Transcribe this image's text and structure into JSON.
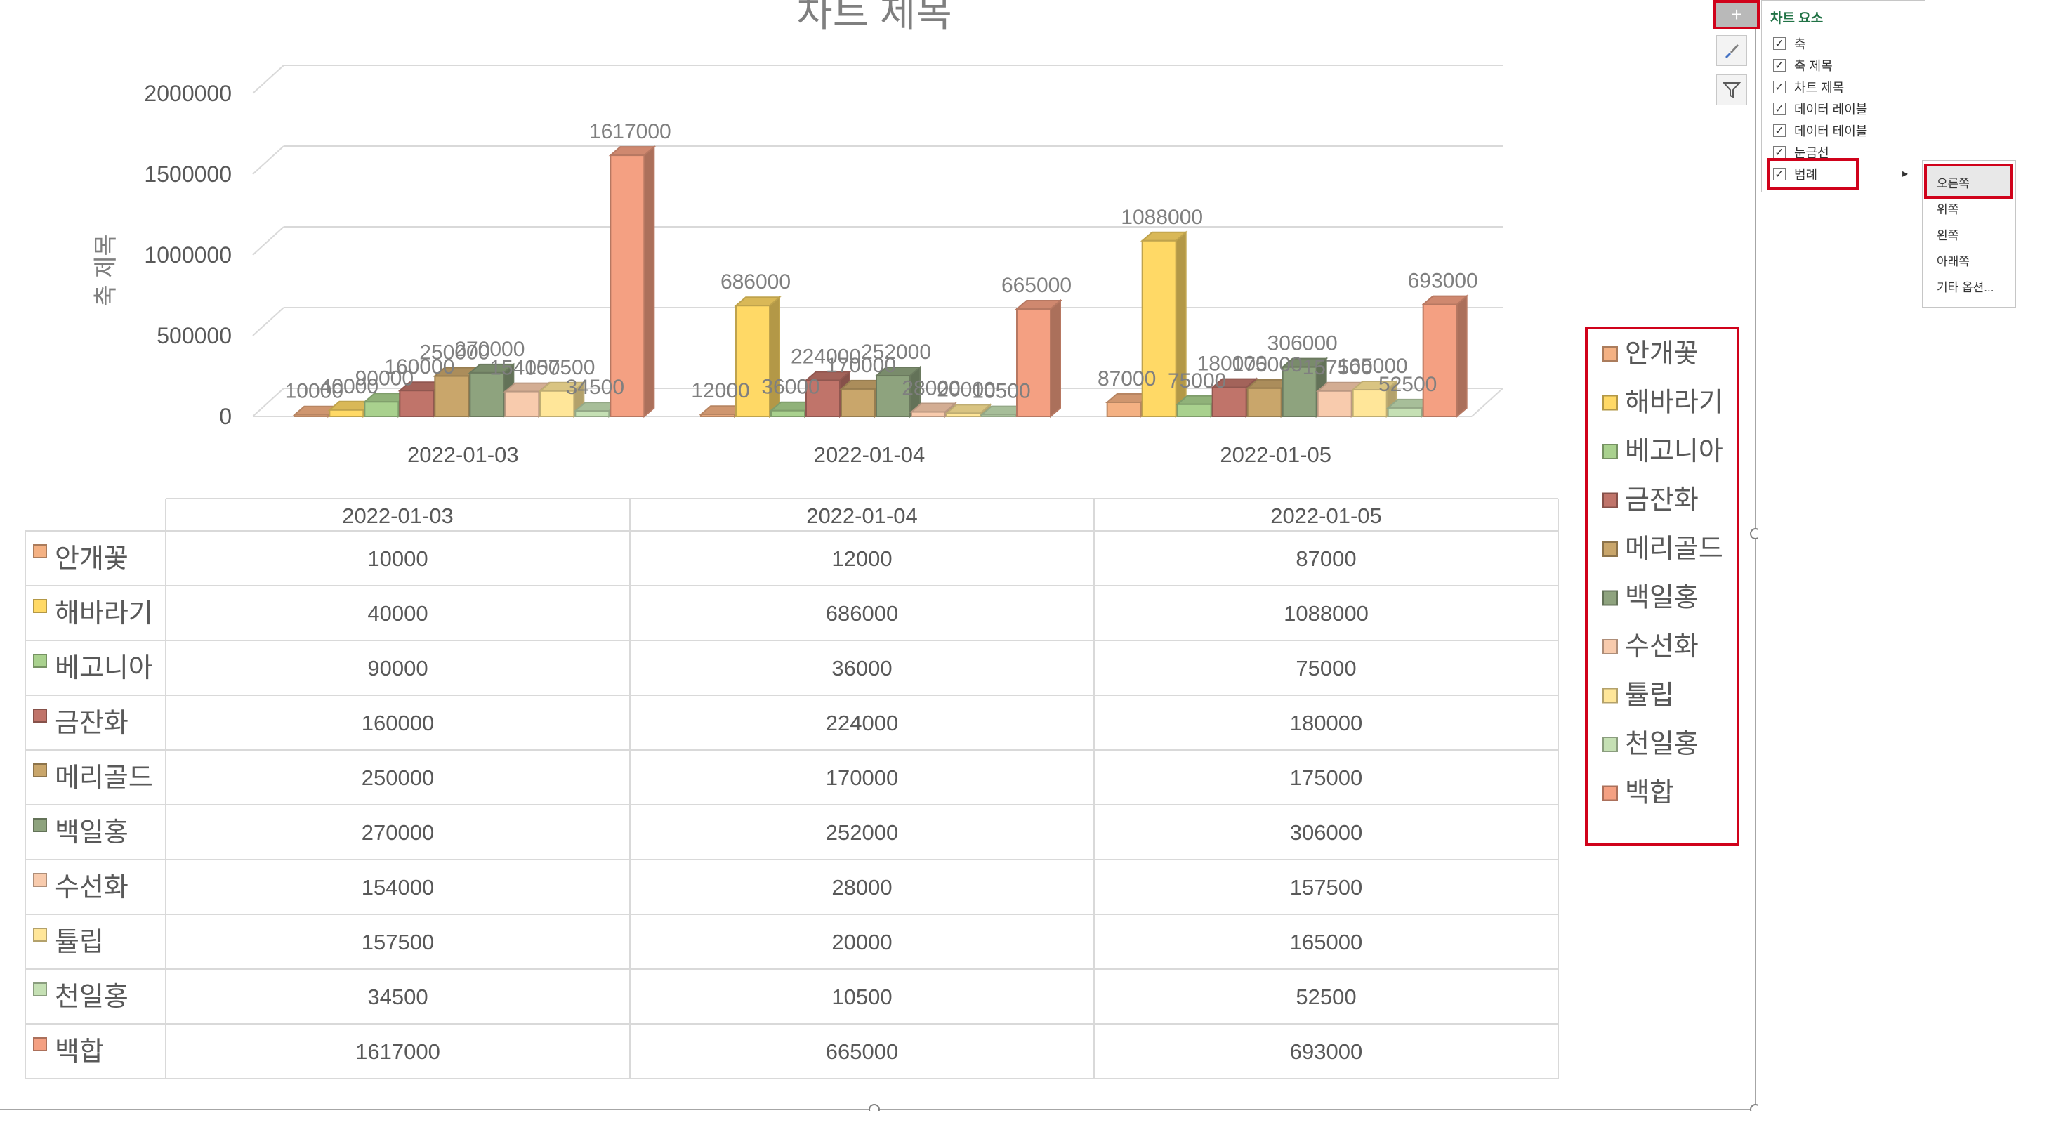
{
  "chart_data": {
    "type": "bar",
    "title": "차트 제목",
    "ylabel": "축 제목",
    "xlabel": "",
    "categories": [
      "2022-01-03",
      "2022-01-04",
      "2022-01-05"
    ],
    "y_ticks": [
      "2000000",
      "1500000",
      "1000000",
      "500000",
      "0"
    ],
    "ylim": [
      0,
      2000000
    ],
    "grid": true,
    "legend_position": "right",
    "series": [
      {
        "name": "안개꽃",
        "values": [
          10000,
          12000,
          87000
        ],
        "color": "#f4b183"
      },
      {
        "name": "해바라기",
        "values": [
          40000,
          686000,
          1088000
        ],
        "color": "#ffd966"
      },
      {
        "name": "베고니아",
        "values": [
          90000,
          36000,
          75000
        ],
        "color": "#a9d18e"
      },
      {
        "name": "금잔화",
        "values": [
          160000,
          224000,
          180000
        ],
        "color": "#c0746a"
      },
      {
        "name": "메리골드",
        "values": [
          250000,
          170000,
          175000
        ],
        "color": "#c9a66b"
      },
      {
        "name": "백일홍",
        "values": [
          270000,
          252000,
          306000
        ],
        "color": "#8ea37e"
      },
      {
        "name": "수선화",
        "values": [
          154000,
          28000,
          157500
        ],
        "color": "#f8cbad"
      },
      {
        "name": "튤립",
        "values": [
          157500,
          20000,
          165000
        ],
        "color": "#ffe699"
      },
      {
        "name": "천일홍",
        "values": [
          34500,
          10500,
          52500
        ],
        "color": "#c5e0b4"
      },
      {
        "name": "백합",
        "values": [
          1617000,
          665000,
          693000
        ],
        "color": "#f4a082"
      }
    ]
  },
  "chart_tools": {
    "elements_panel": {
      "title": "차트 요소",
      "items": [
        {
          "label": "축",
          "checked": true
        },
        {
          "label": "축 제목",
          "checked": true
        },
        {
          "label": "차트 제목",
          "checked": true
        },
        {
          "label": "데이터 레이블",
          "checked": true
        },
        {
          "label": "데이터 테이블",
          "checked": true
        },
        {
          "label": "눈금선",
          "checked": true
        },
        {
          "label": "범례",
          "checked": true
        }
      ],
      "check_glyph": "✓"
    },
    "legend_submenu": [
      "오른쪽",
      "위쪽",
      "왼쪽",
      "아래쪽",
      "기타 옵션..."
    ],
    "icons": {
      "elements": "plus-icon",
      "style": "brush-icon",
      "filter": "filter-icon"
    }
  }
}
